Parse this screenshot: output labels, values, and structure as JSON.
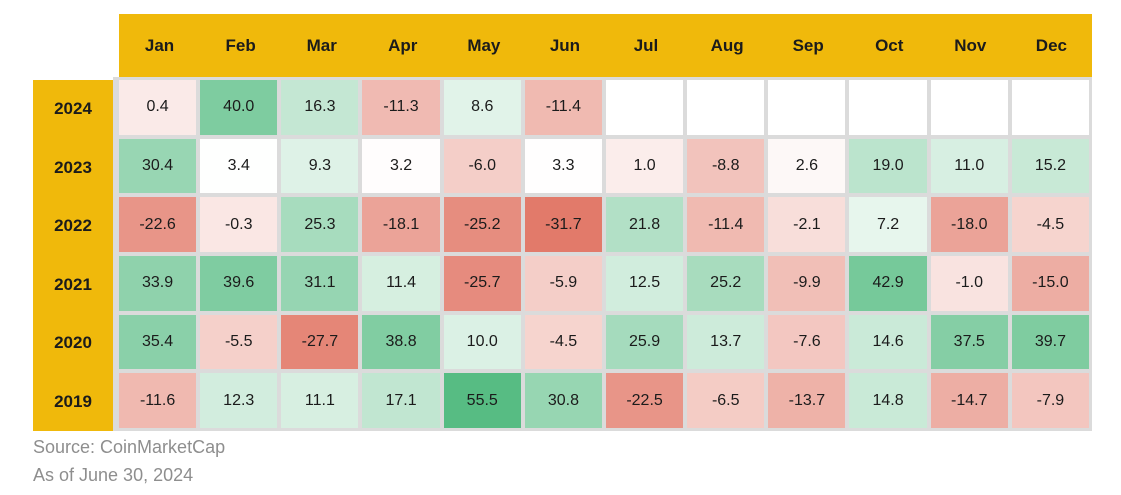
{
  "colors": {
    "gold": "#F0B90B",
    "cell_gap": "#DBDBDB",
    "cell_text": "#1B1B1B",
    "footer_text": "#8E8E8E"
  },
  "footer": {
    "source": "Source: CoinMarketCap",
    "as_of": "As of June 30, 2024"
  },
  "chart_data": {
    "type": "heatmap",
    "title": "",
    "xlabel": "",
    "ylabel": "",
    "legend": "none",
    "grid": "off",
    "columns": [
      "Jan",
      "Feb",
      "Mar",
      "Apr",
      "May",
      "Jun",
      "Jul",
      "Aug",
      "Sep",
      "Oct",
      "Nov",
      "Dec"
    ],
    "rows": [
      "2024",
      "2023",
      "2022",
      "2021",
      "2020",
      "2019"
    ],
    "values": [
      [
        0.4,
        40.0,
        16.3,
        -11.3,
        8.6,
        -11.4,
        null,
        null,
        null,
        null,
        null,
        null
      ],
      [
        30.4,
        3.4,
        9.3,
        3.2,
        -6.0,
        3.3,
        1.0,
        -8.8,
        2.6,
        19.0,
        11.0,
        15.2
      ],
      [
        -22.6,
        -0.3,
        25.3,
        -18.1,
        -25.2,
        -31.7,
        21.8,
        -11.4,
        -2.1,
        7.2,
        -18.0,
        -4.5
      ],
      [
        33.9,
        39.6,
        31.1,
        11.4,
        -25.7,
        -5.9,
        12.5,
        25.2,
        -9.9,
        42.9,
        -1.0,
        -15.0
      ],
      [
        35.4,
        -5.5,
        -27.7,
        38.8,
        10.0,
        -4.5,
        25.9,
        13.7,
        -7.6,
        14.6,
        37.5,
        39.7
      ],
      [
        -11.6,
        12.3,
        11.1,
        17.1,
        55.5,
        30.8,
        -22.5,
        -6.5,
        -13.7,
        14.8,
        -14.7,
        -7.9
      ]
    ],
    "value_decimals": 1,
    "colormap": {
      "min": -31.7,
      "mid": 3.35,
      "max": 55.5,
      "red": "#E27A6A",
      "green": "#57BC83",
      "empty": "#FFFFFF",
      "gamma": 0.75
    }
  }
}
